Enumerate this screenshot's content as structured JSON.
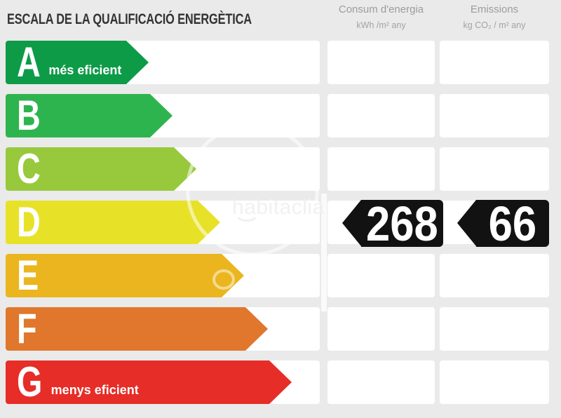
{
  "title": "ESCALA DE LA QUALIFICACIÓ ENERGÈTICA",
  "columns": {
    "consumption": {
      "name": "Consum d'energia",
      "unit": "kWh /m² any"
    },
    "emissions": {
      "name": "Emissions",
      "unit": "kg CO₂ / m² any"
    }
  },
  "ratings": [
    {
      "letter": "A",
      "color": "#0d9b48",
      "note": "més eficient"
    },
    {
      "letter": "B",
      "color": "#2eb44e",
      "note": ""
    },
    {
      "letter": "C",
      "color": "#98c93c",
      "note": ""
    },
    {
      "letter": "D",
      "color": "#e7e228",
      "note": ""
    },
    {
      "letter": "E",
      "color": "#eab51e",
      "note": ""
    },
    {
      "letter": "F",
      "color": "#e0772c",
      "note": ""
    },
    {
      "letter": "G",
      "color": "#e62d27",
      "note": "menys eficient"
    }
  ],
  "rated_letter": "D",
  "values": {
    "consumption": "268",
    "emissions": "66"
  },
  "watermark": {
    "text": "habitaclia"
  },
  "chart_data": {
    "type": "bar",
    "title": "ESCALA DE LA QUALIFICACIÓ ENERGÈTICA",
    "categories": [
      "A",
      "B",
      "C",
      "D",
      "E",
      "F",
      "G"
    ],
    "values": [
      1,
      2,
      3,
      4,
      5,
      6,
      7
    ],
    "colors": [
      "#0d9b48",
      "#2eb44e",
      "#98c93c",
      "#e7e228",
      "#eab51e",
      "#e0772c",
      "#e62d27"
    ],
    "annotations": {
      "A": "més eficient",
      "G": "menys eficient",
      "rated_letter": "D"
    },
    "columns": [
      {
        "header": "Consum d'energia",
        "unit": "kWh /m² any",
        "value": 268
      },
      {
        "header": "Emissions",
        "unit": "kg CO₂ / m² any",
        "value": 66
      }
    ],
    "orientation": "horizontal",
    "grid": false,
    "legend_position": "none"
  }
}
